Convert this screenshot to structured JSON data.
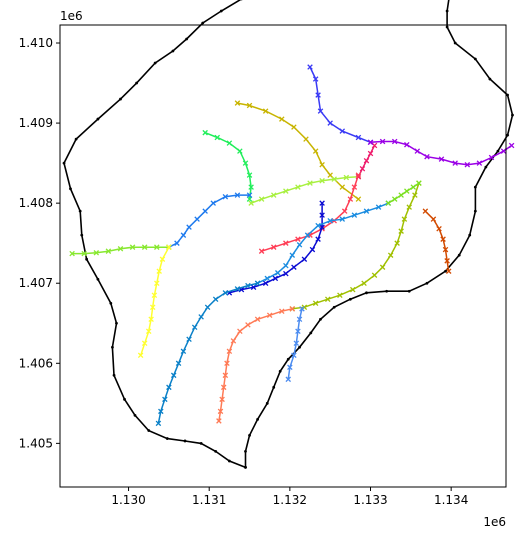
{
  "chart_data": {
    "type": "line",
    "title": "",
    "xlabel": "",
    "ylabel": "",
    "x_offset_label": "1e6",
    "y_offset_label": "1e6",
    "xlim": [
      1.12915,
      1.13468
    ],
    "ylim": [
      1.404455,
      1.410225
    ],
    "x_ticks": [
      {
        "value": 1.13,
        "label": "1.130"
      },
      {
        "value": 1.131,
        "label": "1.131"
      },
      {
        "value": 1.132,
        "label": "1.132"
      },
      {
        "value": 1.133,
        "label": "1.133"
      },
      {
        "value": 1.134,
        "label": "1.134"
      }
    ],
    "y_ticks": [
      {
        "value": 1.405,
        "label": "1.405"
      },
      {
        "value": 1.406,
        "label": "1.406"
      },
      {
        "value": 1.407,
        "label": "1.407"
      },
      {
        "value": 1.408,
        "label": "1.408"
      },
      {
        "value": 1.409,
        "label": "1.409"
      },
      {
        "value": 1.41,
        "label": "1.410"
      }
    ],
    "grid": false,
    "legend": "none",
    "boundary": {
      "color": "#000000",
      "points": [
        [
          1.13145,
          1.4047
        ],
        [
          1.13125,
          1.40478
        ],
        [
          1.13108,
          1.4049
        ],
        [
          1.1309,
          1.405
        ],
        [
          1.1307,
          1.40503
        ],
        [
          1.13048,
          1.40506
        ],
        [
          1.13025,
          1.40516
        ],
        [
          1.13008,
          1.40535
        ],
        [
          1.12995,
          1.40555
        ],
        [
          1.12982,
          1.40585
        ],
        [
          1.1298,
          1.4062
        ],
        [
          1.12985,
          1.4065
        ],
        [
          1.12978,
          1.40675
        ],
        [
          1.12962,
          1.40705
        ],
        [
          1.12948,
          1.4073
        ],
        [
          1.12942,
          1.4076
        ],
        [
          1.1294,
          1.4079
        ],
        [
          1.12928,
          1.40818
        ],
        [
          1.1292,
          1.4085
        ],
        [
          1.12935,
          1.4088
        ],
        [
          1.12962,
          1.40905
        ],
        [
          1.1299,
          1.4093
        ],
        [
          1.1301,
          1.4095
        ],
        [
          1.13033,
          1.40975
        ],
        [
          1.13055,
          1.4099
        ],
        [
          1.13072,
          1.41005
        ],
        [
          1.13092,
          1.41025
        ],
        [
          1.13115,
          1.4104
        ],
        [
          1.1314,
          1.41055
        ],
        [
          1.13165,
          1.4107
        ],
        [
          1.1319,
          1.4108
        ],
        [
          1.13215,
          1.4109
        ],
        [
          1.13242,
          1.41097
        ],
        [
          1.1326,
          1.41102
        ],
        [
          1.1328,
          1.41107
        ],
        [
          1.13303,
          1.41108
        ],
        [
          1.13326,
          1.41108
        ],
        [
          1.13348,
          1.41105
        ],
        [
          1.1337,
          1.41097
        ],
        [
          1.1339,
          1.4108
        ],
        [
          1.13398,
          1.4106
        ],
        [
          1.13395,
          1.4104
        ],
        [
          1.13395,
          1.4102
        ],
        [
          1.13405,
          1.41
        ],
        [
          1.1343,
          1.4098
        ],
        [
          1.13448,
          1.40955
        ],
        [
          1.1347,
          1.40935
        ],
        [
          1.13476,
          1.4091
        ],
        [
          1.1347,
          1.40885
        ],
        [
          1.13458,
          1.40865
        ],
        [
          1.13443,
          1.40845
        ],
        [
          1.1343,
          1.4082
        ],
        [
          1.1343,
          1.4079
        ],
        [
          1.13423,
          1.4076
        ],
        [
          1.1341,
          1.40735
        ],
        [
          1.13393,
          1.40715
        ],
        [
          1.1337,
          1.407
        ],
        [
          1.13348,
          1.4069
        ],
        [
          1.1332,
          1.4069
        ],
        [
          1.13295,
          1.40688
        ],
        [
          1.13275,
          1.4068
        ],
        [
          1.13255,
          1.4067
        ],
        [
          1.13238,
          1.40655
        ],
        [
          1.13226,
          1.40638
        ],
        [
          1.13212,
          1.4062
        ],
        [
          1.13198,
          1.40605
        ],
        [
          1.13188,
          1.4059
        ],
        [
          1.1318,
          1.4057
        ],
        [
          1.13172,
          1.4055
        ],
        [
          1.1316,
          1.4053
        ],
        [
          1.1315,
          1.4051
        ],
        [
          1.13145,
          1.4049
        ],
        [
          1.13145,
          1.4047
        ]
      ]
    },
    "series": [
      {
        "color": "#3a3af5",
        "points": [
          [
            1.13225,
            1.4097
          ],
          [
            1.13232,
            1.40955
          ],
          [
            1.13235,
            1.40935
          ],
          [
            1.13238,
            1.40915
          ],
          [
            1.1325,
            1.409
          ],
          [
            1.13265,
            1.4089
          ],
          [
            1.13285,
            1.40882
          ],
          [
            1.133,
            1.40876
          ]
        ]
      },
      {
        "color": "#c8b400",
        "points": [
          [
            1.13135,
            1.40925
          ],
          [
            1.1315,
            1.40922
          ],
          [
            1.1317,
            1.40915
          ],
          [
            1.1319,
            1.40905
          ],
          [
            1.13205,
            1.40895
          ],
          [
            1.1322,
            1.4088
          ],
          [
            1.13232,
            1.40865
          ],
          [
            1.1324,
            1.40848
          ],
          [
            1.1325,
            1.40835
          ],
          [
            1.13265,
            1.4082
          ],
          [
            1.13285,
            1.40805
          ]
        ]
      },
      {
        "color": "#20ee5a",
        "points": [
          [
            1.13095,
            1.40888
          ],
          [
            1.1311,
            1.40882
          ],
          [
            1.13125,
            1.40875
          ],
          [
            1.13138,
            1.40865
          ],
          [
            1.13145,
            1.4085
          ],
          [
            1.1315,
            1.40835
          ],
          [
            1.13152,
            1.4082
          ],
          [
            1.1315,
            1.40805
          ]
        ]
      },
      {
        "color": "#a8f040",
        "points": [
          [
            1.13152,
            1.408
          ],
          [
            1.13165,
            1.40805
          ],
          [
            1.1318,
            1.4081
          ],
          [
            1.13195,
            1.40815
          ],
          [
            1.1321,
            1.4082
          ],
          [
            1.13225,
            1.40825
          ],
          [
            1.1324,
            1.40828
          ],
          [
            1.13255,
            1.4083
          ],
          [
            1.1327,
            1.40832
          ],
          [
            1.13285,
            1.40833
          ]
        ]
      },
      {
        "color": "#ee1a6a",
        "points": [
          [
            1.13285,
            1.40833
          ],
          [
            1.1329,
            1.40843
          ],
          [
            1.13295,
            1.40853
          ],
          [
            1.133,
            1.40862
          ],
          [
            1.13305,
            1.40872
          ]
        ]
      },
      {
        "color": "#9a00e6",
        "points": [
          [
            1.133,
            1.40876
          ],
          [
            1.13315,
            1.40877
          ],
          [
            1.1333,
            1.40877
          ],
          [
            1.13345,
            1.40873
          ],
          [
            1.13358,
            1.40865
          ],
          [
            1.1337,
            1.40858
          ],
          [
            1.13388,
            1.40855
          ],
          [
            1.13405,
            1.4085
          ],
          [
            1.1342,
            1.40848
          ],
          [
            1.13435,
            1.4085
          ],
          [
            1.1345,
            1.40857
          ],
          [
            1.13465,
            1.40865
          ],
          [
            1.13475,
            1.40872
          ]
        ]
      },
      {
        "color": "#ff3d55",
        "points": [
          [
            1.13285,
            1.40835
          ],
          [
            1.1328,
            1.4082
          ],
          [
            1.13275,
            1.40805
          ],
          [
            1.13268,
            1.4079
          ],
          [
            1.13255,
            1.40778
          ],
          [
            1.1324,
            1.40768
          ],
          [
            1.13225,
            1.4076
          ],
          [
            1.1321,
            1.40755
          ],
          [
            1.13195,
            1.4075
          ],
          [
            1.1318,
            1.40745
          ],
          [
            1.13165,
            1.4074
          ]
        ]
      },
      {
        "color": "#1e7aee",
        "points": [
          [
            1.1315,
            1.4081
          ],
          [
            1.13135,
            1.4081
          ],
          [
            1.1312,
            1.40808
          ],
          [
            1.13105,
            1.408
          ],
          [
            1.13095,
            1.4079
          ],
          [
            1.13085,
            1.4078
          ],
          [
            1.13075,
            1.4077
          ],
          [
            1.13068,
            1.4076
          ],
          [
            1.1306,
            1.4075
          ],
          [
            1.1305,
            1.40745
          ]
        ]
      },
      {
        "color": "#88e830",
        "points": [
          [
            1.1305,
            1.40745
          ],
          [
            1.13035,
            1.40745
          ],
          [
            1.1302,
            1.40745
          ],
          [
            1.13005,
            1.40745
          ],
          [
            1.1299,
            1.40743
          ],
          [
            1.12975,
            1.4074
          ],
          [
            1.1296,
            1.40738
          ],
          [
            1.12945,
            1.40737
          ],
          [
            1.1293,
            1.40737
          ]
        ]
      },
      {
        "color": "#ffff30",
        "points": [
          [
            1.1305,
            1.40745
          ],
          [
            1.13042,
            1.4073
          ],
          [
            1.13038,
            1.40715
          ],
          [
            1.13035,
            1.407
          ],
          [
            1.13032,
            1.40685
          ],
          [
            1.1303,
            1.4067
          ],
          [
            1.13028,
            1.40655
          ],
          [
            1.13025,
            1.4064
          ],
          [
            1.1302,
            1.40625
          ],
          [
            1.13015,
            1.4061
          ]
        ]
      },
      {
        "color": "#0a0ad2",
        "points": [
          [
            1.1324,
            1.408
          ],
          [
            1.1324,
            1.40785
          ],
          [
            1.1324,
            1.4077
          ],
          [
            1.13235,
            1.40755
          ],
          [
            1.13228,
            1.40742
          ],
          [
            1.13218,
            1.4073
          ],
          [
            1.13205,
            1.4072
          ],
          [
            1.13195,
            1.40712
          ],
          [
            1.13182,
            1.40706
          ],
          [
            1.1317,
            1.407
          ],
          [
            1.13155,
            1.40695
          ],
          [
            1.1314,
            1.40692
          ],
          [
            1.13125,
            1.40688
          ]
        ]
      },
      {
        "color": "#1a8ce0",
        "points": [
          [
            1.13322,
            1.408
          ],
          [
            1.1331,
            1.40795
          ],
          [
            1.13295,
            1.4079
          ],
          [
            1.1328,
            1.40785
          ],
          [
            1.13265,
            1.4078
          ],
          [
            1.1325,
            1.40778
          ],
          [
            1.13235,
            1.40772
          ],
          [
            1.13222,
            1.4076
          ],
          [
            1.13212,
            1.40748
          ],
          [
            1.13203,
            1.40735
          ],
          [
            1.13195,
            1.40722
          ],
          [
            1.13185,
            1.40713
          ],
          [
            1.13172,
            1.40706
          ],
          [
            1.1316,
            1.407
          ]
        ]
      },
      {
        "color": "#0a80c8",
        "points": [
          [
            1.1316,
            1.407
          ],
          [
            1.13148,
            1.40697
          ],
          [
            1.13135,
            1.40693
          ],
          [
            1.1312,
            1.40688
          ],
          [
            1.13108,
            1.4068
          ],
          [
            1.13098,
            1.4067
          ],
          [
            1.1309,
            1.40658
          ],
          [
            1.13082,
            1.40645
          ],
          [
            1.13075,
            1.4063
          ],
          [
            1.13068,
            1.40615
          ],
          [
            1.13062,
            1.406
          ],
          [
            1.13056,
            1.40585
          ],
          [
            1.1305,
            1.4057
          ],
          [
            1.13045,
            1.40555
          ],
          [
            1.1304,
            1.4054
          ],
          [
            1.13037,
            1.40525
          ]
        ]
      },
      {
        "color": "#a0c000",
        "points": [
          [
            1.1336,
            1.40825
          ],
          [
            1.13355,
            1.4081
          ],
          [
            1.13348,
            1.40795
          ],
          [
            1.13342,
            1.4078
          ],
          [
            1.13338,
            1.40765
          ],
          [
            1.13333,
            1.4075
          ],
          [
            1.13325,
            1.40735
          ],
          [
            1.13315,
            1.4072
          ],
          [
            1.13305,
            1.4071
          ],
          [
            1.13292,
            1.407
          ],
          [
            1.13278,
            1.40692
          ],
          [
            1.13262,
            1.40685
          ],
          [
            1.13247,
            1.4068
          ],
          [
            1.13232,
            1.40675
          ],
          [
            1.13218,
            1.4067
          ],
          [
            1.13203,
            1.40668
          ]
        ]
      },
      {
        "color": "#7ae020",
        "points": [
          [
            1.1336,
            1.40825
          ],
          [
            1.13353,
            1.4082
          ],
          [
            1.13345,
            1.40815
          ],
          [
            1.13338,
            1.4081
          ],
          [
            1.1333,
            1.40805
          ],
          [
            1.13322,
            1.408
          ]
        ]
      },
      {
        "color": "#ff7a55",
        "points": [
          [
            1.13203,
            1.40668
          ],
          [
            1.1319,
            1.40665
          ],
          [
            1.13175,
            1.4066
          ],
          [
            1.1316,
            1.40655
          ],
          [
            1.13148,
            1.40648
          ],
          [
            1.13138,
            1.4064
          ],
          [
            1.1313,
            1.40628
          ],
          [
            1.13125,
            1.40615
          ],
          [
            1.13122,
            1.406
          ],
          [
            1.1312,
            1.40585
          ],
          [
            1.13118,
            1.4057
          ],
          [
            1.13116,
            1.40555
          ],
          [
            1.13114,
            1.4054
          ],
          [
            1.13112,
            1.40528
          ]
        ]
      },
      {
        "color": "#4c8cf0",
        "points": [
          [
            1.13215,
            1.40668
          ],
          [
            1.13212,
            1.40655
          ],
          [
            1.1321,
            1.4064
          ],
          [
            1.13208,
            1.40625
          ],
          [
            1.13205,
            1.4061
          ],
          [
            1.132,
            1.40595
          ],
          [
            1.13198,
            1.4058
          ]
        ]
      },
      {
        "color": "#d24a00",
        "points": [
          [
            1.13368,
            1.4079
          ],
          [
            1.13378,
            1.4078
          ],
          [
            1.13385,
            1.40768
          ],
          [
            1.1339,
            1.40755
          ],
          [
            1.13393,
            1.40742
          ],
          [
            1.13395,
            1.40728
          ],
          [
            1.13397,
            1.40715
          ]
        ]
      }
    ]
  }
}
